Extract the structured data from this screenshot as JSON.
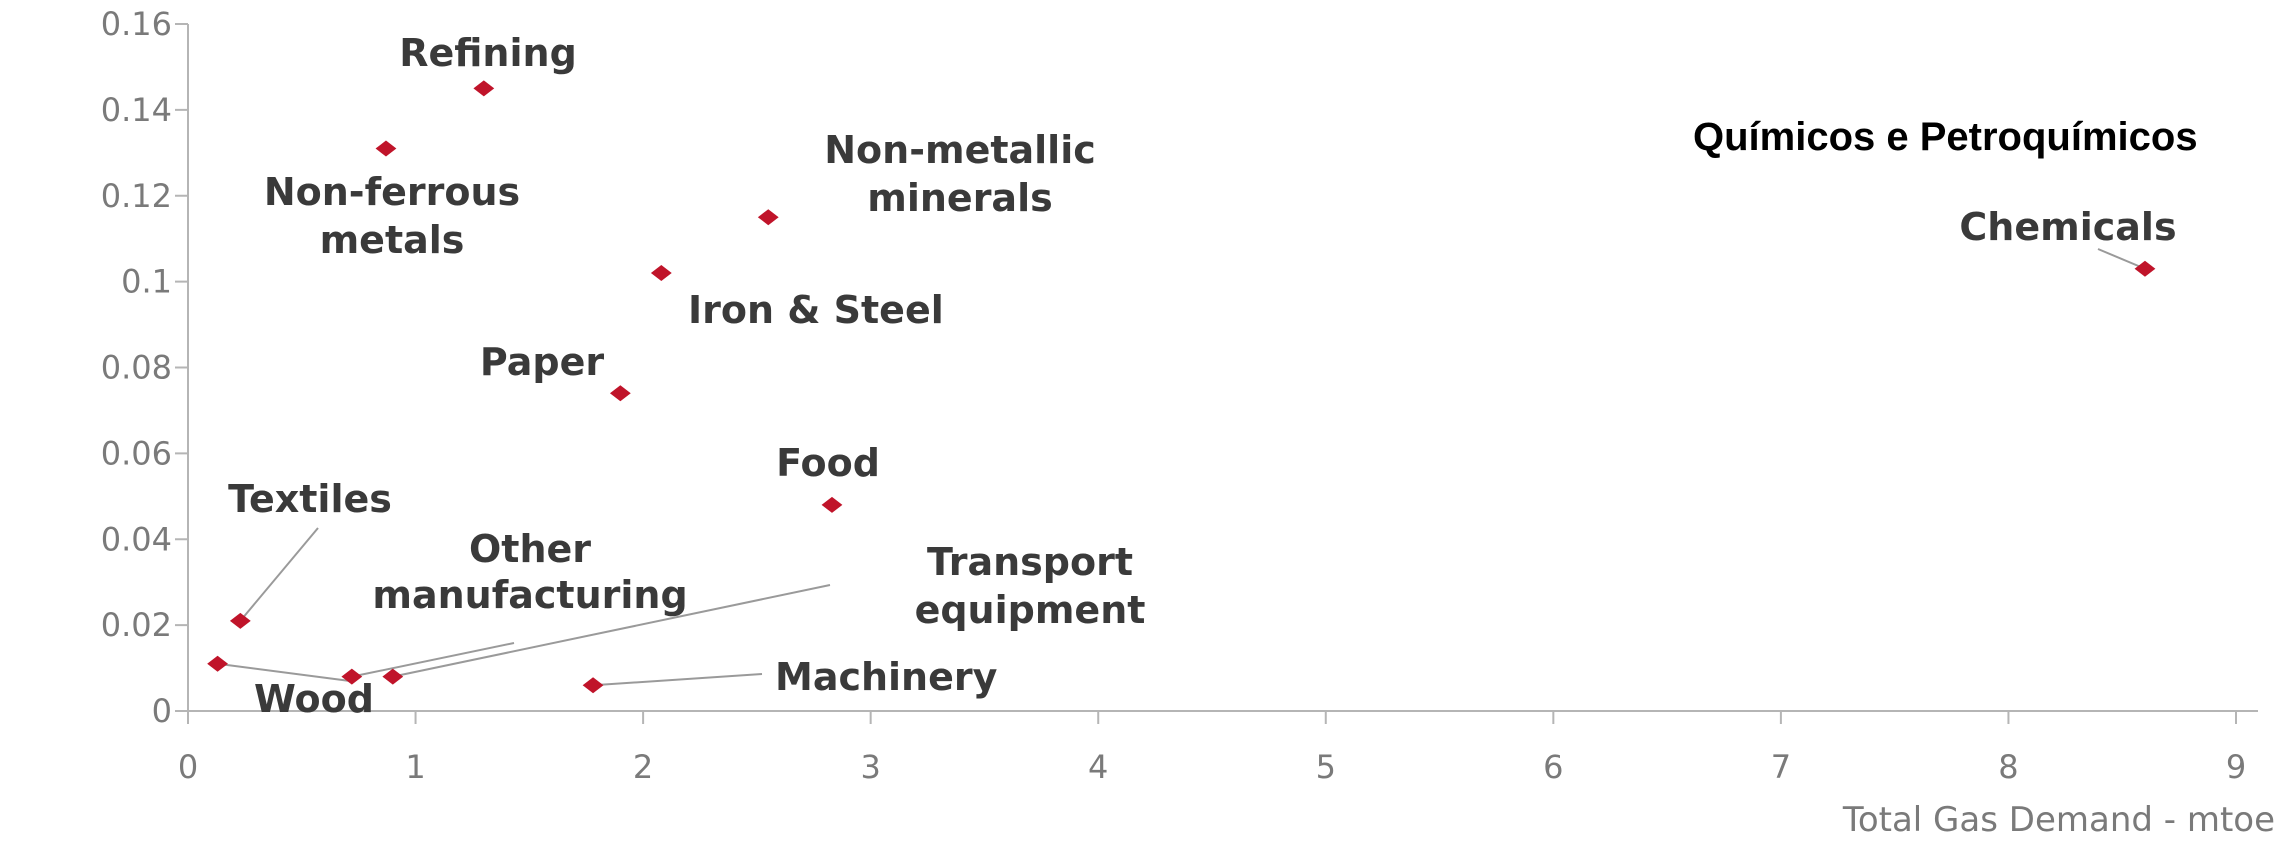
{
  "overlay_title": "Químicos e Petroquímicos",
  "chart_data": {
    "type": "scatter",
    "xlabel": "Total Gas Demand - mtoe",
    "ylabel": "",
    "xlim": [
      0,
      9
    ],
    "ylim": [
      0,
      0.16
    ],
    "x_ticks": [
      "0",
      "1",
      "2",
      "3",
      "4",
      "5",
      "6",
      "7",
      "8",
      "9"
    ],
    "y_ticks": [
      "0",
      "0.02",
      "0.04",
      "0.06",
      "0.08",
      "0.1",
      "0.12",
      "0.14",
      "0.16"
    ],
    "grid": false,
    "marker_color": "#c0142a",
    "points": [
      {
        "label": "Refining",
        "x": 1.3,
        "y": 0.145
      },
      {
        "label": "Non-ferrous metals",
        "x": 0.87,
        "y": 0.131
      },
      {
        "label": "Non-metallic minerals",
        "x": 2.55,
        "y": 0.115
      },
      {
        "label": "Iron & Steel",
        "x": 2.08,
        "y": 0.102
      },
      {
        "label": "Paper",
        "x": 1.9,
        "y": 0.074
      },
      {
        "label": "Food",
        "x": 2.83,
        "y": 0.048
      },
      {
        "label": "Textiles",
        "x": 0.23,
        "y": 0.021
      },
      {
        "label": "Wood",
        "x": 0.13,
        "y": 0.011
      },
      {
        "label": "Other manufacturing",
        "x": 0.72,
        "y": 0.008
      },
      {
        "label": "Transport equipment",
        "x": 0.9,
        "y": 0.008
      },
      {
        "label": "Machinery",
        "x": 1.78,
        "y": 0.006
      },
      {
        "label": "Chemicals",
        "x": 8.6,
        "y": 0.103
      }
    ]
  }
}
